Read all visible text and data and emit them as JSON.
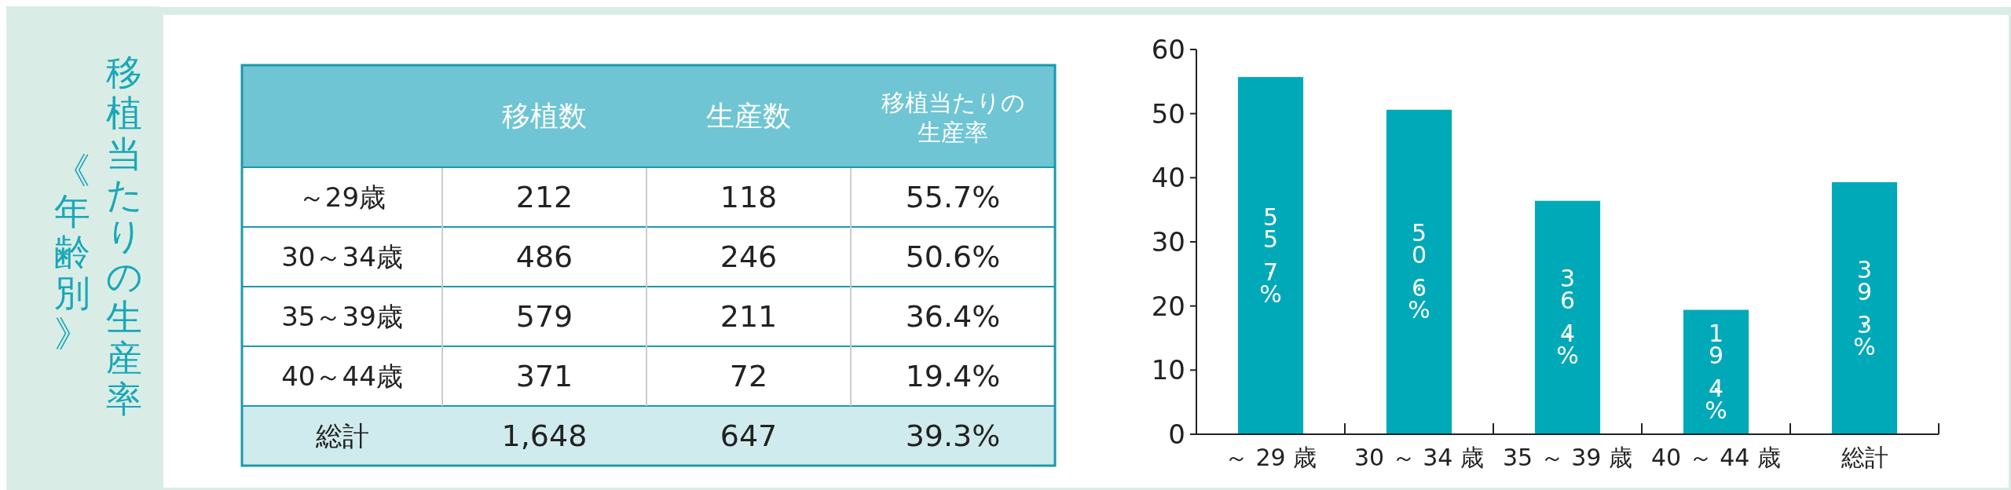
{
  "chart_data": [
    {
      "type": "other",
      "title": "移植当たりの生産率",
      "subtitle": "《年齢別》",
      "categories": [
        "移植数",
        "生産数",
        "移植当たりの生産率"
      ],
      "y_categories": [
        "～29歳",
        "30～34歳",
        "35～39歳",
        "40～44歳",
        "総計"
      ],
      "cell_labels": [
        [
          "212",
          "118",
          "55.7%"
        ],
        [
          "486",
          "246",
          "50.6%"
        ],
        [
          "579",
          "211",
          "36.4%"
        ],
        [
          "371",
          "72",
          "19.4%"
        ],
        [
          "1,648",
          "647",
          "39.3%"
        ]
      ]
    },
    {
      "type": "bar",
      "categories": [
        "～ 29 歳",
        "30 ～ 34 歳",
        "35 ～ 39 歳",
        "40 ～ 44 歳",
        "総計"
      ],
      "values": [
        55.7,
        50.6,
        36.4,
        19.4,
        39.3
      ],
      "color": "#00a9b8",
      "ylim": [
        0,
        60
      ],
      "yticks": [
        0,
        10,
        20,
        30,
        40,
        50,
        60
      ],
      "value_labels": [
        "55.7%",
        "50.6%",
        "36.4%",
        "19.4%",
        "39.3%"
      ]
    }
  ]
}
